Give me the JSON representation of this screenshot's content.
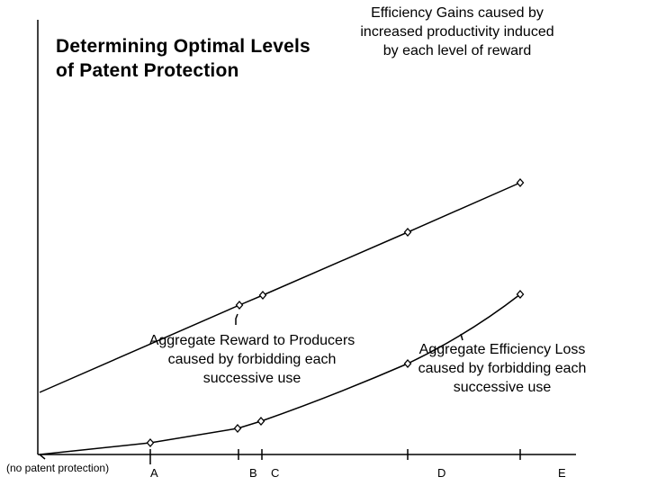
{
  "title": {
    "line1": "Determining Optimal Levels",
    "line2": "of Patent Protection"
  },
  "annotations": {
    "gains": [
      "Efficiency Gains caused by",
      "increased productivity induced",
      "by each level of reward"
    ],
    "reward": [
      "Aggregate Reward to Producers",
      "caused by forbidding each",
      "successive use"
    ],
    "loss": [
      "Aggregate Efficiency Loss",
      "caused by forbidding each",
      "successive use"
    ]
  },
  "x_axis": {
    "origin_label": "(no patent protection)",
    "ticks": [
      "A",
      "B",
      "C",
      "D",
      "E"
    ]
  }
}
